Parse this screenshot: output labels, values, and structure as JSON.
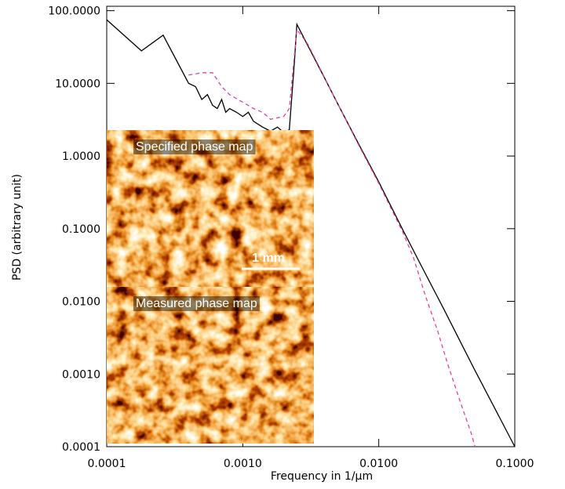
{
  "chart_data": {
    "type": "line",
    "xlabel": "Frequency in 1/μm",
    "ylabel": "PSD (arbitrary unit)",
    "xlog": true,
    "ylog": true,
    "xlim": [
      0.0001,
      0.1
    ],
    "ylim": [
      0.0001,
      115
    ],
    "xticks": [
      0.0001,
      {
        "value": 0.001,
        "label": "0.0010"
      },
      {
        "value": 0.01,
        "label": "0.0100"
      },
      {
        "value": 0.1,
        "label": "0.1000"
      }
    ],
    "yticks": [
      0.0001,
      {
        "value": 0.001,
        "label": "0.0010"
      },
      {
        "value": 0.01,
        "label": "0.0100"
      },
      {
        "value": 0.1,
        "label": "0.1000"
      },
      {
        "value": 1,
        "label": "1.0000"
      },
      {
        "value": 10,
        "label": "10.0000"
      },
      {
        "value": 100,
        "label": "100.0000"
      }
    ],
    "series": [
      {
        "color": "#000000",
        "style": "solid",
        "x": [
          0.0001,
          0.00018,
          0.00026,
          0.0004,
          0.00045,
          0.0005,
          0.00055,
          0.0006,
          0.00065,
          0.0007,
          0.00075,
          0.0008,
          0.0009,
          0.001,
          0.0011,
          0.0012,
          0.0014,
          0.0016,
          0.0018,
          0.002,
          0.0022,
          0.0024,
          0.0025,
          0.003,
          0.004,
          0.005,
          0.007,
          0.01,
          0.015,
          0.02,
          0.03,
          0.05,
          0.07,
          0.1
        ],
        "values": [
          75,
          28,
          46,
          10,
          9,
          6,
          7,
          5,
          4.5,
          6,
          4,
          4.5,
          4,
          3.5,
          4,
          3,
          2.5,
          2.2,
          2.5,
          2.1,
          2.3,
          20,
          65,
          33.5,
          11.8,
          5.2,
          1.55,
          0.44,
          0.097,
          0.034,
          0.0079,
          0.0012,
          0.00036,
          0.0001
        ]
      },
      {
        "color": "#e0409f",
        "style": "dashed",
        "x": [
          0.0004,
          0.0005,
          0.0006,
          0.0007,
          0.0008,
          0.001,
          0.0012,
          0.0014,
          0.0016,
          0.002,
          0.0022,
          0.0025,
          0.003,
          0.004,
          0.005,
          0.007,
          0.01,
          0.015,
          0.018,
          0.022,
          0.027,
          0.032,
          0.04,
          0.048,
          0.051
        ],
        "values": [
          13,
          14,
          14,
          9,
          7,
          5.5,
          4.5,
          4,
          3.2,
          3.5,
          4.5,
          55,
          35,
          12,
          5.2,
          1.5,
          0.42,
          0.09,
          0.04,
          0.012,
          0.004,
          0.0014,
          0.0004,
          0.00015,
          0.0001
        ]
      }
    ],
    "insets": [
      {
        "label": "Specified phase map"
      },
      {
        "label": "Measured phase map"
      }
    ],
    "scale_bar": "1 mm"
  }
}
